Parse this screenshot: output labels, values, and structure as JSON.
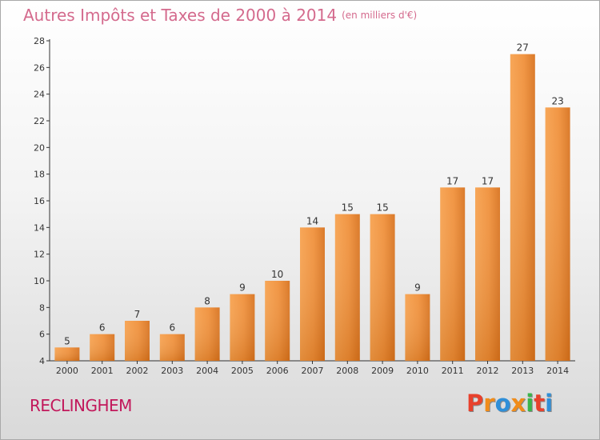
{
  "chart_data": {
    "type": "bar",
    "title": "Autres Impôts et Taxes de 2000 à 2014",
    "unit": "(en milliers d'€)",
    "categories": [
      "2000",
      "2001",
      "2002",
      "2003",
      "2004",
      "2005",
      "2006",
      "2007",
      "2008",
      "2009",
      "2010",
      "2011",
      "2012",
      "2013",
      "2014"
    ],
    "values": [
      5,
      6,
      7,
      6,
      8,
      9,
      10,
      14,
      15,
      15,
      9,
      17,
      17,
      27,
      23
    ],
    "ylim": [
      4,
      28
    ],
    "yticks": [
      4,
      6,
      8,
      10,
      12,
      14,
      16,
      18,
      20,
      22,
      24,
      26,
      28
    ],
    "bar_color": "#f0903a",
    "grid": false
  },
  "footer": {
    "town": "RECLINGHEM",
    "logo": "Proxiti",
    "logo_colors": [
      "#e8412c",
      "#f08c1a",
      "#2f8fd8",
      "#f08c1a",
      "#3ab54a",
      "#e8412c",
      "#2f8fd8"
    ]
  }
}
